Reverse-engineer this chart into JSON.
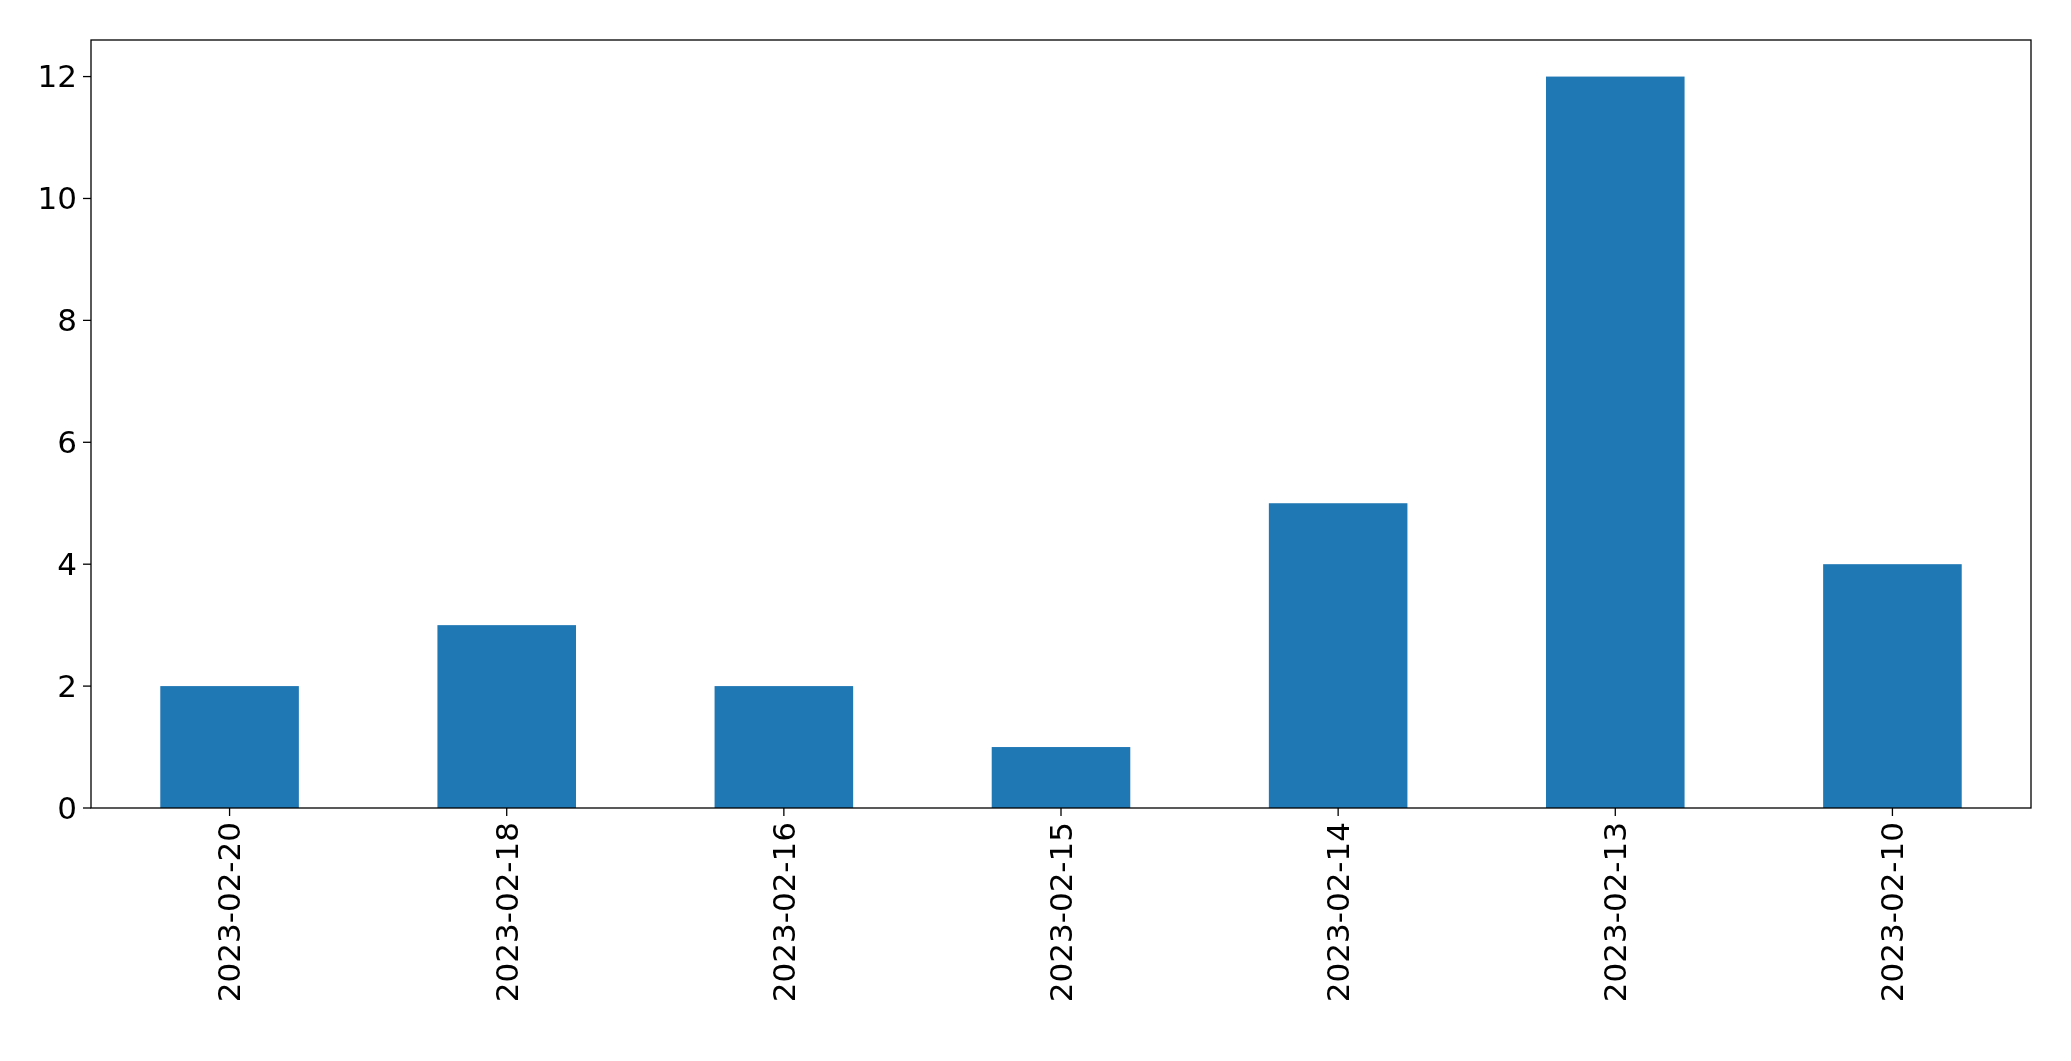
{
  "chart_data": {
    "type": "bar",
    "categories": [
      "2023-02-20",
      "2023-02-18",
      "2023-02-16",
      "2023-02-15",
      "2023-02-14",
      "2023-02-13",
      "2023-02-10"
    ],
    "values": [
      2,
      3,
      2,
      1,
      5,
      12,
      4
    ],
    "color": "#1f77b4",
    "ylim": [
      0,
      12.6
    ],
    "yticks": [
      0,
      2,
      4,
      6,
      8,
      10,
      12
    ],
    "grid": false
  }
}
